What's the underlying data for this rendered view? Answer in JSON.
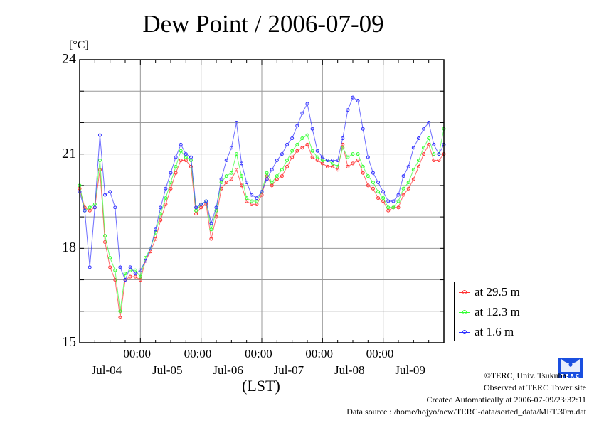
{
  "chart_data": {
    "type": "line",
    "title": "Dew Point / 2006-07-09",
    "ylabel": "[°C]",
    "xlabel": "(LST)",
    "ylim": [
      15,
      24
    ],
    "yticks": [
      "15",
      "18",
      "21",
      "24"
    ],
    "xlim_hours": [
      0,
      144
    ],
    "x_start": "2006-07-04 00:00",
    "x_step_hours": 2,
    "xticks": [
      {
        "time": "00:00",
        "date": "Jul-04",
        "hour": 24
      },
      {
        "time": "00:00",
        "date": "Jul-05",
        "hour": 48
      },
      {
        "time": "00:00",
        "date": "Jul-06",
        "hour": 72
      },
      {
        "time": "00:00",
        "date": "Jul-07",
        "hour": 96
      },
      {
        "time": "00:00",
        "date": "Jul-08",
        "hour": 120
      },
      {
        "time": "",
        "date": "Jul-09",
        "hour": 144
      }
    ],
    "grid": true,
    "legend_position": "right-bottom",
    "series": [
      {
        "name": "at 29.5 m",
        "color": "#ff3030",
        "values": [
          19.9,
          19.3,
          19.2,
          19.3,
          20.5,
          18.2,
          17.4,
          17.0,
          15.8,
          17.0,
          17.1,
          17.1,
          17.0,
          17.6,
          17.9,
          18.3,
          18.9,
          19.4,
          19.9,
          20.4,
          20.8,
          20.8,
          20.6,
          19.1,
          19.3,
          19.4,
          18.3,
          19.0,
          19.9,
          20.1,
          20.2,
          20.5,
          20.0,
          19.5,
          19.4,
          19.4,
          19.7,
          20.3,
          20.0,
          20.2,
          20.3,
          20.6,
          20.9,
          21.1,
          21.2,
          21.3,
          20.9,
          20.8,
          20.7,
          20.6,
          20.6,
          20.5,
          21.3,
          20.6,
          20.7,
          20.8,
          20.4,
          20.0,
          19.9,
          19.6,
          19.5,
          19.2,
          19.3,
          19.3,
          19.7,
          19.9,
          20.2,
          20.6,
          21.0,
          21.3,
          20.8,
          20.8,
          21.0
        ]
      },
      {
        "name": "at 12.3 m",
        "color": "#30ff30",
        "values": [
          20.0,
          19.2,
          19.3,
          19.4,
          20.8,
          18.4,
          17.7,
          17.3,
          16.0,
          17.2,
          17.3,
          17.3,
          17.1,
          17.7,
          18.0,
          18.5,
          19.1,
          19.6,
          20.1,
          20.6,
          21.1,
          20.9,
          20.8,
          19.2,
          19.4,
          19.5,
          18.6,
          19.2,
          20.1,
          20.3,
          20.4,
          21.0,
          20.3,
          19.6,
          19.5,
          19.5,
          19.8,
          20.4,
          20.1,
          20.3,
          20.5,
          20.8,
          21.1,
          21.3,
          21.5,
          21.6,
          21.1,
          20.9,
          20.8,
          20.8,
          20.7,
          20.6,
          21.2,
          20.9,
          21.0,
          21.0,
          20.6,
          20.3,
          20.1,
          19.8,
          19.6,
          19.3,
          19.3,
          19.5,
          19.9,
          20.1,
          20.5,
          20.8,
          21.2,
          21.5,
          21.0,
          21.0,
          21.8
        ]
      },
      {
        "name": "at 1.6 m",
        "color": "#3030ff",
        "values": [
          19.8,
          19.2,
          17.4,
          19.3,
          21.6,
          19.7,
          19.8,
          19.3,
          17.4,
          17.0,
          17.4,
          17.2,
          17.3,
          17.6,
          18.0,
          18.6,
          19.3,
          19.9,
          20.4,
          20.9,
          21.3,
          21.0,
          20.9,
          19.3,
          19.4,
          19.5,
          18.8,
          19.3,
          20.2,
          20.8,
          21.2,
          22.0,
          20.7,
          20.1,
          19.7,
          19.6,
          19.8,
          20.2,
          20.5,
          20.8,
          21.0,
          21.3,
          21.5,
          21.9,
          22.3,
          22.6,
          21.8,
          21.1,
          20.9,
          20.8,
          20.8,
          20.8,
          21.5,
          22.4,
          22.8,
          22.7,
          21.8,
          20.9,
          20.4,
          20.1,
          19.8,
          19.5,
          19.5,
          19.7,
          20.3,
          20.6,
          21.2,
          21.5,
          21.8,
          22.0,
          21.3,
          21.0,
          21.3
        ]
      }
    ]
  },
  "footer": {
    "copyright": "©TERC, Univ. Tsukuba",
    "site": "Observed at TERC Tower site",
    "created": "Created Automatically at 2006-07-09/23:32:11",
    "source": "Data source : /home/hojyo/new/TERC-data/sorted_data/MET.30m.dat",
    "logo_text": "TERC"
  }
}
